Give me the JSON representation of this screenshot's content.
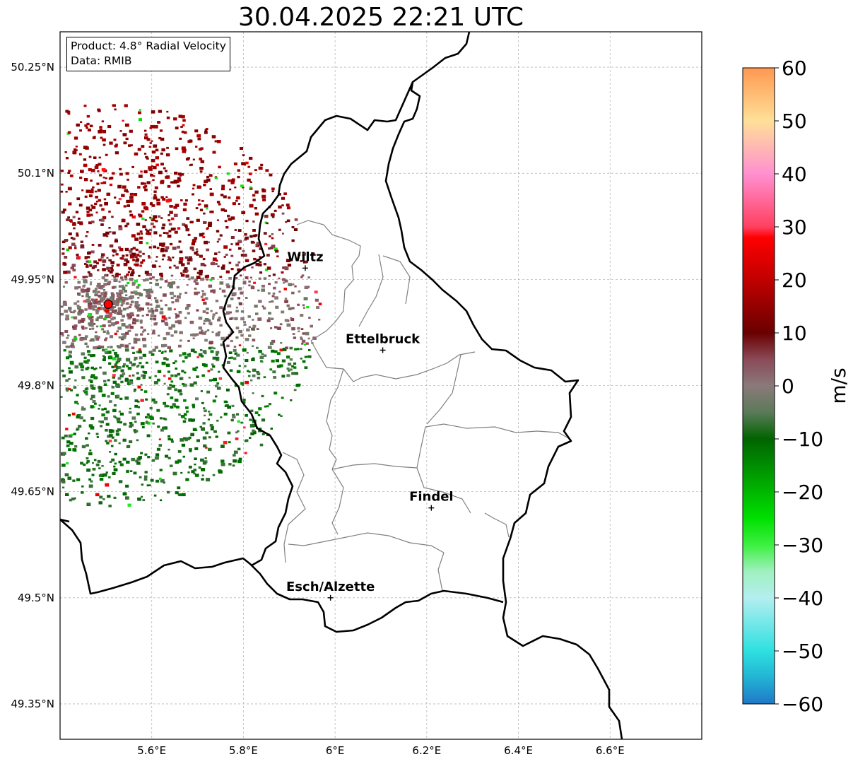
{
  "title": "30.04.2025 22:21 UTC",
  "info": {
    "product": "Product: 4.8° Radial Velocity",
    "source": "Data: RMIB"
  },
  "map": {
    "extent": {
      "lon": [
        5.4,
        6.8
      ],
      "lat": [
        49.3,
        50.3
      ]
    },
    "lon_ticks": [
      {
        "value": 5.6,
        "label": "5.6°E"
      },
      {
        "value": 5.8,
        "label": "5.8°E"
      },
      {
        "value": 6.0,
        "label": "6°E"
      },
      {
        "value": 6.2,
        "label": "6.2°E"
      },
      {
        "value": 6.4,
        "label": "6.4°E"
      },
      {
        "value": 6.6,
        "label": "6.6°E"
      }
    ],
    "lat_ticks": [
      {
        "value": 50.25,
        "label": "50.25°N"
      },
      {
        "value": 50.1,
        "label": "50.1°N"
      },
      {
        "value": 49.95,
        "label": "49.95°N"
      },
      {
        "value": 49.8,
        "label": "49.8°N"
      },
      {
        "value": 49.65,
        "label": "49.65°N"
      },
      {
        "value": 49.5,
        "label": "49.5°N"
      },
      {
        "value": 49.35,
        "label": "49.35°N"
      }
    ],
    "grid": true,
    "cities": [
      {
        "name": "Wiltz",
        "lon": 5.935,
        "lat": 49.966
      },
      {
        "name": "Ettelbruck",
        "lon": 6.104,
        "lat": 49.85
      },
      {
        "name": "Findel",
        "lon": 6.21,
        "lat": 49.627
      },
      {
        "name": "Esch/Alzette",
        "lon": 5.99,
        "lat": 49.5
      }
    ],
    "radar_site": {
      "lon": 5.505,
      "lat": 49.915,
      "color": "#ff0000"
    },
    "border_color": "#000000",
    "canton_color": "#808080"
  },
  "colorbar": {
    "unit": "m/s",
    "range": [
      -60,
      60
    ],
    "ticks": [
      {
        "value": 60,
        "label": "60"
      },
      {
        "value": 50,
        "label": "50"
      },
      {
        "value": 40,
        "label": "40"
      },
      {
        "value": 30,
        "label": "30"
      },
      {
        "value": 20,
        "label": "20"
      },
      {
        "value": 10,
        "label": "10"
      },
      {
        "value": 0,
        "label": "0"
      },
      {
        "value": -10,
        "label": "−10"
      },
      {
        "value": -20,
        "label": "−20"
      },
      {
        "value": -30,
        "label": "−30"
      },
      {
        "value": -40,
        "label": "−40"
      },
      {
        "value": -50,
        "label": "−50"
      },
      {
        "value": -60,
        "label": "−60"
      }
    ],
    "stops": [
      {
        "value": -60,
        "color": "#1f78c8"
      },
      {
        "value": -55,
        "color": "#22b4d4"
      },
      {
        "value": -50,
        "color": "#2ee0e0"
      },
      {
        "value": -40,
        "color": "#b4eef0"
      },
      {
        "value": -35,
        "color": "#a0f0c0"
      },
      {
        "value": -30,
        "color": "#3cf040"
      },
      {
        "value": -25,
        "color": "#00e000"
      },
      {
        "value": -10,
        "color": "#006400"
      },
      {
        "value": -5,
        "color": "#5a7a58"
      },
      {
        "value": 0,
        "color": "#8a7a7a"
      },
      {
        "value": 5,
        "color": "#8a4a58"
      },
      {
        "value": 10,
        "color": "#6a0000"
      },
      {
        "value": 20,
        "color": "#c00000"
      },
      {
        "value": 28,
        "color": "#ff0000"
      },
      {
        "value": 30,
        "color": "#ff4060"
      },
      {
        "value": 40,
        "color": "#ff90d0"
      },
      {
        "value": 44,
        "color": "#ffb0b8"
      },
      {
        "value": 50,
        "color": "#ffe098"
      },
      {
        "value": 60,
        "color": "#ff9850"
      }
    ]
  }
}
